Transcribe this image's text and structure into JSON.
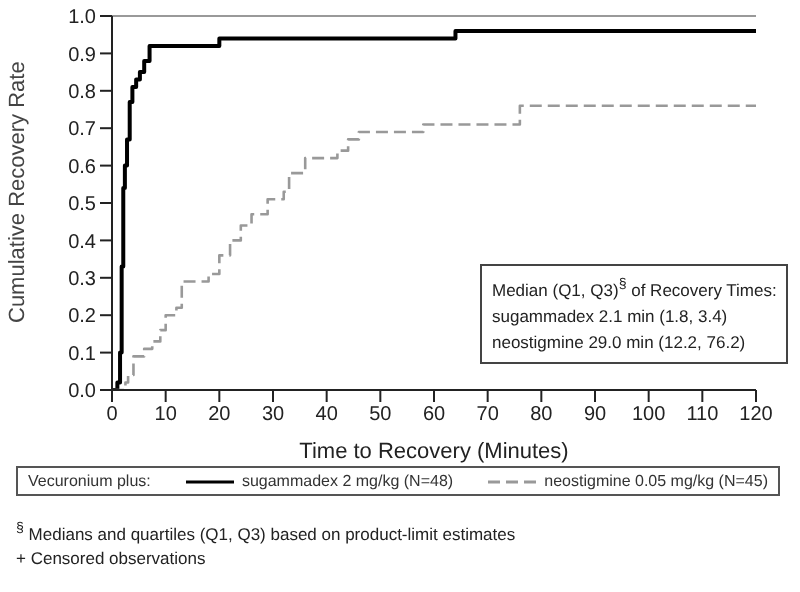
{
  "chart_data": {
    "type": "step",
    "xlabel": "Time to Recovery (Minutes)",
    "ylabel": "Cumulative Recovery Rate",
    "legend_title": "Vecuronium plus:",
    "legend": "bottom",
    "xlim": [
      0,
      120
    ],
    "xticks": [
      0,
      10,
      20,
      30,
      40,
      50,
      60,
      70,
      80,
      90,
      100,
      110,
      120
    ],
    "ylim": [
      0,
      1
    ],
    "yticks": [
      {
        "value": 0,
        "label": "0.0"
      },
      0.1,
      0.2,
      0.3,
      0.4,
      0.5,
      0.6,
      0.7,
      0.8,
      0.9,
      {
        "value": 1,
        "label": "1.0"
      }
    ],
    "ref_lines": [
      {
        "axis": "y",
        "value": 1,
        "label": null,
        "color": "#999999"
      }
    ],
    "series": [
      {
        "name": "sugammadex 2 mg/kg (N=48)",
        "color": "#000000",
        "line_style": "solid",
        "x": [
          0,
          1,
          1.5,
          1.8,
          2.1,
          2.4,
          2.8,
          3.3,
          3.8,
          4.5,
          5.2,
          6,
          7,
          20,
          64,
          120
        ],
        "values": [
          0,
          0.02,
          0.1,
          0.33,
          0.54,
          0.6,
          0.67,
          0.77,
          0.81,
          0.83,
          0.85,
          0.88,
          0.92,
          0.94,
          0.96,
          0.96
        ]
      },
      {
        "name": "neostigmine 0.05 mg/kg (N=45)",
        "color": "#999999",
        "line_style": "dashed",
        "x": [
          0,
          2.5,
          3,
          4,
          6,
          7.5,
          9,
          10,
          12,
          13,
          18,
          20,
          22,
          24,
          26,
          29,
          32,
          33,
          36,
          42,
          44,
          46,
          58,
          76,
          120
        ],
        "values": [
          0,
          0.02,
          0.04,
          0.09,
          0.11,
          0.13,
          0.16,
          0.2,
          0.22,
          0.29,
          0.31,
          0.36,
          0.4,
          0.44,
          0.47,
          0.51,
          0.53,
          0.58,
          0.62,
          0.64,
          0.67,
          0.69,
          0.71,
          0.76,
          0.76
        ]
      }
    ],
    "annotations": [
      "Median (Q1, Q3)$^{§}$ of Recovery Times:",
      "sugammadex 2.1 min (1.8, 3.4)",
      "neostigmine 29.0 min (12.2, 76.2)",
      "$^{§}$ Medians and quartiles (Q1, Q3) based on product-limit estimates",
      "+ Censored observations"
    ]
  }
}
